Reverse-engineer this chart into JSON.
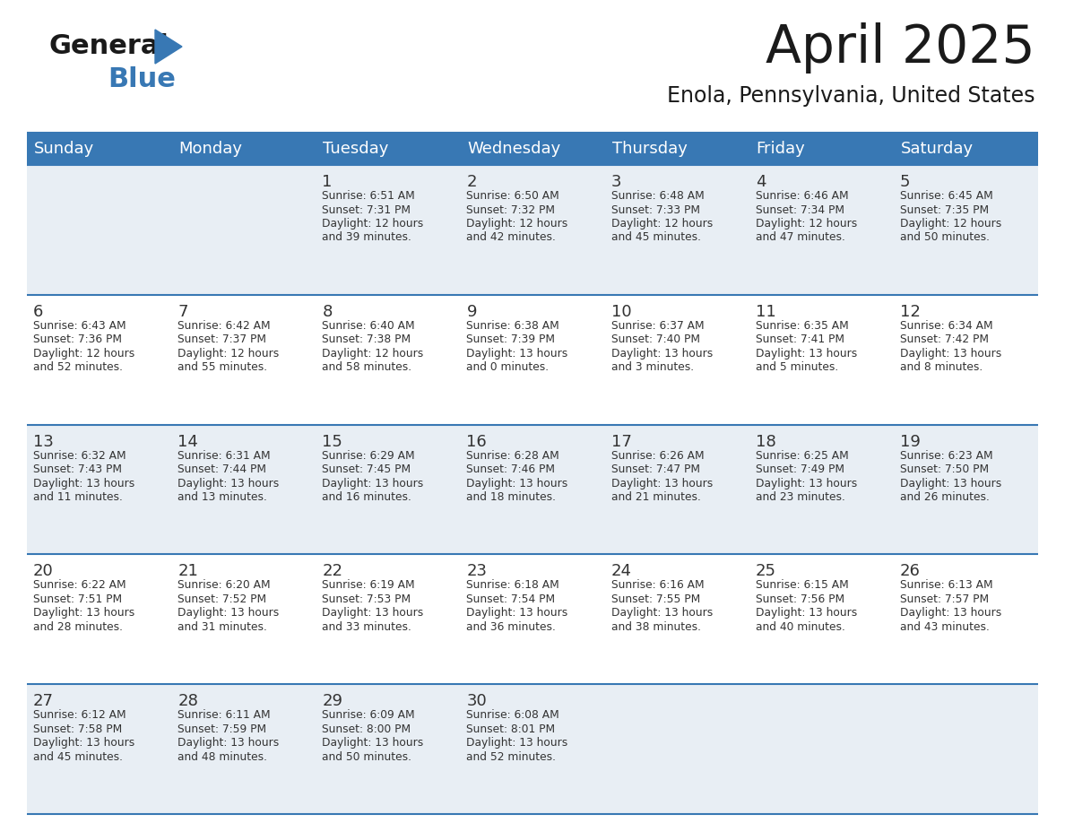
{
  "title": "April 2025",
  "subtitle": "Enola, Pennsylvania, United States",
  "header_bg_color": "#3878b4",
  "header_text_color": "#ffffff",
  "weekdays": [
    "Sunday",
    "Monday",
    "Tuesday",
    "Wednesday",
    "Thursday",
    "Friday",
    "Saturday"
  ],
  "cell_bg_row0": "#e8eef4",
  "cell_bg_row1": "#ffffff",
  "row_line_color": "#3878b4",
  "day_text_color": "#333333",
  "info_text_color": "#333333",
  "calendar": [
    [
      {
        "day": "",
        "info": ""
      },
      {
        "day": "",
        "info": ""
      },
      {
        "day": "1",
        "info": "Sunrise: 6:51 AM\nSunset: 7:31 PM\nDaylight: 12 hours\nand 39 minutes."
      },
      {
        "day": "2",
        "info": "Sunrise: 6:50 AM\nSunset: 7:32 PM\nDaylight: 12 hours\nand 42 minutes."
      },
      {
        "day": "3",
        "info": "Sunrise: 6:48 AM\nSunset: 7:33 PM\nDaylight: 12 hours\nand 45 minutes."
      },
      {
        "day": "4",
        "info": "Sunrise: 6:46 AM\nSunset: 7:34 PM\nDaylight: 12 hours\nand 47 minutes."
      },
      {
        "day": "5",
        "info": "Sunrise: 6:45 AM\nSunset: 7:35 PM\nDaylight: 12 hours\nand 50 minutes."
      }
    ],
    [
      {
        "day": "6",
        "info": "Sunrise: 6:43 AM\nSunset: 7:36 PM\nDaylight: 12 hours\nand 52 minutes."
      },
      {
        "day": "7",
        "info": "Sunrise: 6:42 AM\nSunset: 7:37 PM\nDaylight: 12 hours\nand 55 minutes."
      },
      {
        "day": "8",
        "info": "Sunrise: 6:40 AM\nSunset: 7:38 PM\nDaylight: 12 hours\nand 58 minutes."
      },
      {
        "day": "9",
        "info": "Sunrise: 6:38 AM\nSunset: 7:39 PM\nDaylight: 13 hours\nand 0 minutes."
      },
      {
        "day": "10",
        "info": "Sunrise: 6:37 AM\nSunset: 7:40 PM\nDaylight: 13 hours\nand 3 minutes."
      },
      {
        "day": "11",
        "info": "Sunrise: 6:35 AM\nSunset: 7:41 PM\nDaylight: 13 hours\nand 5 minutes."
      },
      {
        "day": "12",
        "info": "Sunrise: 6:34 AM\nSunset: 7:42 PM\nDaylight: 13 hours\nand 8 minutes."
      }
    ],
    [
      {
        "day": "13",
        "info": "Sunrise: 6:32 AM\nSunset: 7:43 PM\nDaylight: 13 hours\nand 11 minutes."
      },
      {
        "day": "14",
        "info": "Sunrise: 6:31 AM\nSunset: 7:44 PM\nDaylight: 13 hours\nand 13 minutes."
      },
      {
        "day": "15",
        "info": "Sunrise: 6:29 AM\nSunset: 7:45 PM\nDaylight: 13 hours\nand 16 minutes."
      },
      {
        "day": "16",
        "info": "Sunrise: 6:28 AM\nSunset: 7:46 PM\nDaylight: 13 hours\nand 18 minutes."
      },
      {
        "day": "17",
        "info": "Sunrise: 6:26 AM\nSunset: 7:47 PM\nDaylight: 13 hours\nand 21 minutes."
      },
      {
        "day": "18",
        "info": "Sunrise: 6:25 AM\nSunset: 7:49 PM\nDaylight: 13 hours\nand 23 minutes."
      },
      {
        "day": "19",
        "info": "Sunrise: 6:23 AM\nSunset: 7:50 PM\nDaylight: 13 hours\nand 26 minutes."
      }
    ],
    [
      {
        "day": "20",
        "info": "Sunrise: 6:22 AM\nSunset: 7:51 PM\nDaylight: 13 hours\nand 28 minutes."
      },
      {
        "day": "21",
        "info": "Sunrise: 6:20 AM\nSunset: 7:52 PM\nDaylight: 13 hours\nand 31 minutes."
      },
      {
        "day": "22",
        "info": "Sunrise: 6:19 AM\nSunset: 7:53 PM\nDaylight: 13 hours\nand 33 minutes."
      },
      {
        "day": "23",
        "info": "Sunrise: 6:18 AM\nSunset: 7:54 PM\nDaylight: 13 hours\nand 36 minutes."
      },
      {
        "day": "24",
        "info": "Sunrise: 6:16 AM\nSunset: 7:55 PM\nDaylight: 13 hours\nand 38 minutes."
      },
      {
        "day": "25",
        "info": "Sunrise: 6:15 AM\nSunset: 7:56 PM\nDaylight: 13 hours\nand 40 minutes."
      },
      {
        "day": "26",
        "info": "Sunrise: 6:13 AM\nSunset: 7:57 PM\nDaylight: 13 hours\nand 43 minutes."
      }
    ],
    [
      {
        "day": "27",
        "info": "Sunrise: 6:12 AM\nSunset: 7:58 PM\nDaylight: 13 hours\nand 45 minutes."
      },
      {
        "day": "28",
        "info": "Sunrise: 6:11 AM\nSunset: 7:59 PM\nDaylight: 13 hours\nand 48 minutes."
      },
      {
        "day": "29",
        "info": "Sunrise: 6:09 AM\nSunset: 8:00 PM\nDaylight: 13 hours\nand 50 minutes."
      },
      {
        "day": "30",
        "info": "Sunrise: 6:08 AM\nSunset: 8:01 PM\nDaylight: 13 hours\nand 52 minutes."
      },
      {
        "day": "",
        "info": ""
      },
      {
        "day": "",
        "info": ""
      },
      {
        "day": "",
        "info": ""
      }
    ]
  ],
  "fig_width": 11.88,
  "fig_height": 9.18,
  "dpi": 100
}
